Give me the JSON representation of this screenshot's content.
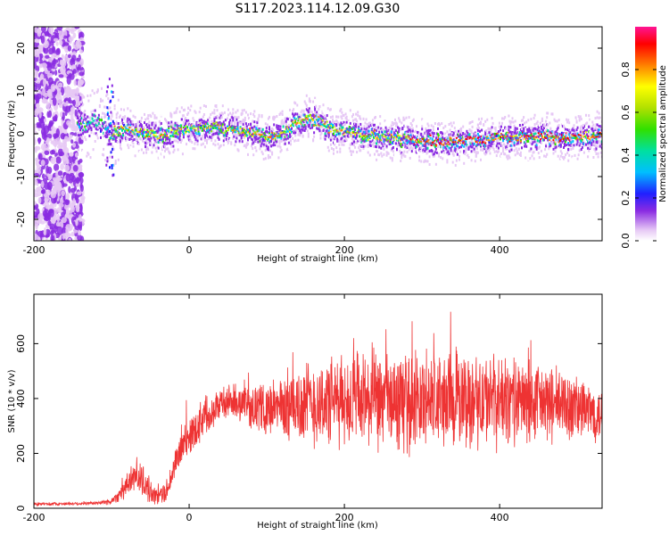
{
  "title": "S117.2023.114.12.09.G30",
  "chart_data": [
    {
      "type": "heatmap",
      "xlabel": "Height of straight line (km)",
      "ylabel": "Frequency (Hz)",
      "xlim": [
        -200,
        532
      ],
      "ylim": [
        -25,
        25
      ],
      "xticks": [
        "-200",
        "0",
        "200",
        "400"
      ],
      "yticks": [
        "20",
        "10",
        "0",
        "-10",
        "-20"
      ],
      "colorbar": {
        "label": "Normalized spectral amplitude",
        "range": [
          0,
          1
        ],
        "ticks": [
          "0.0",
          "0.2",
          "0.4",
          "0.6",
          "0.8"
        ],
        "colors": [
          "#ffffff",
          "#e6c8f5",
          "#8a2be2",
          "#2020ff",
          "#00bfff",
          "#00e0a0",
          "#30e000",
          "#b0e000",
          "#ffff00",
          "#ff8000",
          "#ff0000",
          "#ff1493"
        ]
      },
      "ridge": {
        "x": [
          -145,
          -120,
          -105,
          -95,
          -80,
          -60,
          -40,
          -20,
          0,
          20,
          40,
          60,
          80,
          100,
          120,
          140,
          150,
          160,
          180,
          200,
          220,
          250,
          280,
          300,
          320,
          350,
          380,
          400,
          430,
          460,
          500,
          532
        ],
        "y": [
          2,
          3,
          1,
          1,
          1,
          0.5,
          0,
          0.5,
          1.5,
          2,
          1.5,
          1,
          0.5,
          -0.5,
          0.5,
          3,
          4,
          3.5,
          1.5,
          0.5,
          0,
          -0.5,
          -1,
          -1.5,
          -1.5,
          -1.5,
          -1,
          -1,
          -0.5,
          -0.5,
          -0.5,
          0
        ]
      },
      "noise_region_x": [
        -200,
        -137
      ],
      "notes": "Dense noisy band occupies -200 to about -137 km across all frequencies; a bright narrow ridge tracks near 0 Hz afterwards."
    },
    {
      "type": "line",
      "xlabel": "Height of straight line (km)",
      "ylabel": "SNR (10 * v/v)",
      "xlim": [
        -200,
        532
      ],
      "ylim": [
        0,
        780
      ],
      "xticks": [
        "-200",
        "0",
        "200",
        "400"
      ],
      "yticks": [
        "600",
        "400",
        "200",
        "0"
      ],
      "series": [
        {
          "color": "#ee3333",
          "envelope": {
            "x": [
              -200,
              -120,
              -100,
              -80,
              -70,
              -60,
              -50,
              -40,
              -30,
              -20,
              -10,
              0,
              20,
              40,
              60,
              80,
              100,
              150,
              200,
              250,
              300,
              350,
              400,
              450,
              500,
              532
            ],
            "mean": [
              15,
              18,
              25,
              80,
              130,
              100,
              60,
              40,
              60,
              140,
              220,
              260,
              340,
              380,
              390,
              370,
              360,
              380,
              390,
              385,
              390,
              395,
              390,
              385,
              365,
              340
            ],
            "spread": [
              5,
              6,
              12,
              40,
              60,
              60,
              40,
              30,
              40,
              50,
              60,
              70,
              70,
              60,
              60,
              70,
              90,
              150,
              160,
              170,
              175,
              170,
              160,
              140,
              120,
              90
            ]
          }
        }
      ]
    }
  ]
}
